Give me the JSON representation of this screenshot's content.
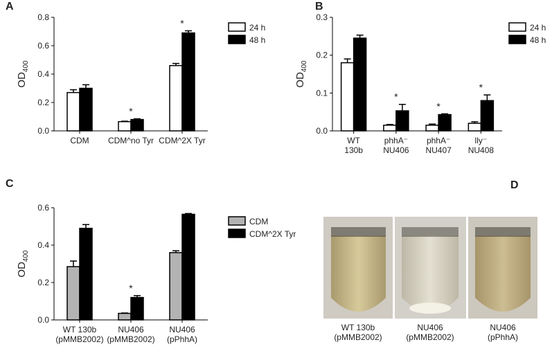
{
  "chart_data": [
    {
      "type": "bar",
      "panel": "A",
      "y_label": "OD",
      "y_label_sub": "400",
      "categories": [
        [
          "CDM"
        ],
        [
          "CDM^no Tyr"
        ],
        [
          "CDM^2X Tyr"
        ]
      ],
      "series": [
        {
          "name": "24 h",
          "color": "#ffffff",
          "values": [
            0.27,
            0.065,
            0.46
          ],
          "errors": [
            0.02,
            0.003,
            0.015
          ]
        },
        {
          "name": "48 h",
          "color": "#000000",
          "values": [
            0.3,
            0.08,
            0.69
          ],
          "errors": [
            0.025,
            0.005,
            0.015
          ]
        }
      ],
      "ylim": [
        0,
        0.8
      ],
      "yticks": [
        {
          "value": 0,
          "label": "0.0"
        },
        0.2,
        0.4,
        0.6,
        0.8
      ],
      "annotations": [
        {
          "text": "*",
          "category": 1
        },
        {
          "text": "*",
          "category": 2
        }
      ]
    },
    {
      "type": "bar",
      "panel": "B",
      "y_label": "OD",
      "y_label_sub": "400",
      "categories": [
        [
          "WT",
          "130b"
        ],
        [
          "phhA⁻",
          "NU406"
        ],
        [
          "phhA⁻",
          "NU407"
        ],
        [
          "lly⁻",
          "NU408"
        ]
      ],
      "series": [
        {
          "name": "24 h",
          "color": "#ffffff",
          "values": [
            0.18,
            0.015,
            0.015,
            0.02
          ],
          "errors": [
            0.01,
            0.002,
            0.003,
            0.004
          ]
        },
        {
          "name": "48 h",
          "color": "#000000",
          "values": [
            0.245,
            0.053,
            0.043,
            0.08
          ],
          "errors": [
            0.008,
            0.017,
            0.002,
            0.015
          ]
        }
      ],
      "ylim": [
        0,
        0.3
      ],
      "yticks": [
        {
          "value": 0,
          "label": "0.0"
        },
        0.1,
        0.2,
        0.3
      ],
      "annotations": [
        {
          "text": "*",
          "category": 1
        },
        {
          "text": "*",
          "category": 2
        },
        {
          "text": "*",
          "category": 3
        }
      ]
    },
    {
      "type": "bar",
      "panel": "C",
      "y_label": "OD",
      "y_label_sub": "400",
      "categories": [
        [
          "WT 130b",
          "(pMMB2002)"
        ],
        [
          "NU406",
          "(pMMB2002)"
        ],
        [
          "NU406",
          "(pPhhA)"
        ]
      ],
      "series": [
        {
          "name": "CDM",
          "color": "#b3b3b3",
          "values": [
            0.285,
            0.035,
            0.36
          ],
          "errors": [
            0.03,
            0.002,
            0.01
          ]
        },
        {
          "name": "CDM^2X Tyr",
          "color": "#000000",
          "values": [
            0.49,
            0.12,
            0.565
          ],
          "errors": [
            0.02,
            0.01,
            0.004
          ]
        }
      ],
      "ylim": [
        0,
        0.6
      ],
      "yticks": [
        {
          "value": 0,
          "label": "0.0"
        },
        0.2,
        0.4,
        0.6
      ],
      "annotations": [
        {
          "text": "*",
          "category": 1
        }
      ]
    }
  ],
  "photo": {
    "panel": "D",
    "labels": [
      [
        "WT 130b",
        "(pMMB2002)"
      ],
      [
        "NU406",
        "(pMMB2002)"
      ],
      [
        "NU406",
        "(pPhhA)"
      ]
    ]
  }
}
